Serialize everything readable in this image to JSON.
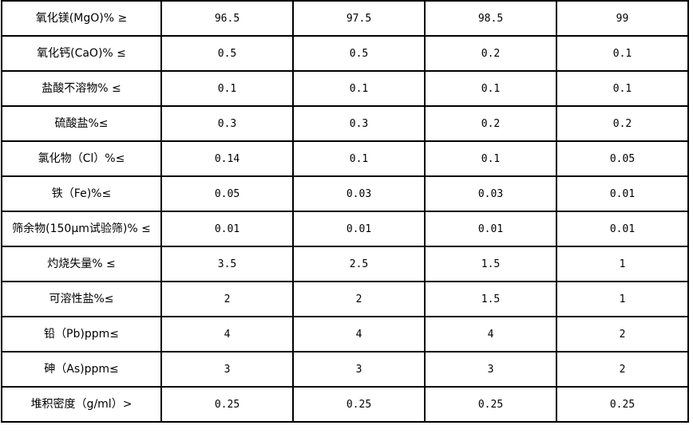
{
  "rows": [
    {
      "label": "氧化镁(MgO)%  ≥",
      "values": [
        "96.5",
        "97.5",
        "98.5",
        "99"
      ]
    },
    {
      "label": "氧化钙(CaO)%  ≤",
      "values": [
        "0.5",
        "0.5",
        "0.2",
        "0.1"
      ]
    },
    {
      "label": "盐酸不溶物%  ≤",
      "values": [
        "0.1",
        "0.1",
        "0.1",
        "0.1"
      ]
    },
    {
      "label": "硫酸盐%≤",
      "values": [
        "0.3",
        "0.3",
        "0.2",
        "0.2"
      ]
    },
    {
      "label": "氯化物（Cl）%≤",
      "values": [
        "0.14",
        "0.1",
        "0.1",
        "0.05"
      ]
    },
    {
      "label": "铁（Fe)%≤",
      "values": [
        "0.05",
        "0.03",
        "0.03",
        "0.01"
      ]
    },
    {
      "label": "筛余物(150μm试验筛)%  ≤",
      "values": [
        "0.01",
        "0.01",
        "0.01",
        "0.01"
      ]
    },
    {
      "label": "灼烧失量%  ≤",
      "values": [
        "3.5",
        "2.5",
        "1.5",
        "1"
      ]
    },
    {
      "label": "可溶性盐%≤",
      "values": [
        "2",
        "2",
        "1.5",
        "1"
      ]
    },
    {
      "label": "铅（Pb)ppm≤",
      "values": [
        "4",
        "4",
        "4",
        "2"
      ]
    },
    {
      "label": "砷（As)ppm≤",
      "values": [
        "3",
        "3",
        "3",
        "2"
      ]
    },
    {
      "label": "堆积密度（g/ml）>",
      "values": [
        "0.25",
        "0.25",
        "0.25",
        "0.25"
      ]
    }
  ]
}
